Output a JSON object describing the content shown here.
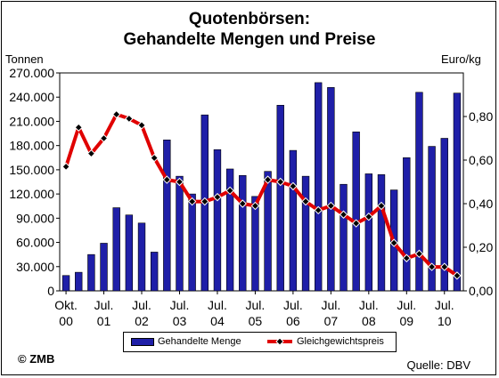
{
  "title_line1": "Quotenbörsen:",
  "title_line2": "Gehandelte Mengen und Preise",
  "left_unit": "Tonnen",
  "right_unit": "Euro/kg",
  "legend": {
    "bars": "Gehandelte Menge",
    "line": "Gleichgewichtspreis"
  },
  "copyright": "© ZMB",
  "source": "Quelle: DBV",
  "colors": {
    "bars": "#1f1fa8",
    "line": "#e00000",
    "marker": "#000000"
  },
  "chart_data": {
    "type": "bar",
    "left_axis": {
      "label": "Tonnen",
      "ylim": [
        0,
        270000
      ],
      "ticks": [
        "0",
        "30.000",
        "60.000",
        "90.000",
        "120.000",
        "150.000",
        "180.000",
        "210.000",
        "240.000",
        "270.000"
      ]
    },
    "right_axis": {
      "label": "Euro/kg",
      "ylim": [
        0,
        1.0
      ],
      "ticks": [
        "0,00",
        "0,20",
        "0,40",
        "0,60",
        "0,80"
      ]
    },
    "x_tick_labels": [
      [
        "Okt.",
        "00"
      ],
      [
        "Jul.",
        "01"
      ],
      [
        "Jul.",
        "02"
      ],
      [
        "Jul.",
        "03"
      ],
      [
        "Jul.",
        "04"
      ],
      [
        "Jul.",
        "05"
      ],
      [
        "Jul.",
        "06"
      ],
      [
        "Jul.",
        "07"
      ],
      [
        "Jul.",
        "08"
      ],
      [
        "Jul.",
        "09"
      ],
      [
        "Jul.",
        "10"
      ]
    ],
    "x_tick_indices": [
      0,
      3,
      6,
      9,
      12,
      15,
      18,
      21,
      24,
      27,
      30
    ],
    "series": [
      {
        "name": "Gehandelte Menge",
        "type": "bar",
        "axis": "left",
        "values": [
          19000,
          23000,
          45000,
          59000,
          103000,
          94000,
          84000,
          48000,
          187000,
          142000,
          120000,
          218000,
          175000,
          151000,
          143000,
          117000,
          148000,
          230000,
          174000,
          142000,
          258000,
          252000,
          132000,
          197000,
          145000,
          144000,
          125000,
          165000,
          246000,
          179000,
          189000,
          245000
        ]
      },
      {
        "name": "Gleichgewichtspreis",
        "type": "line",
        "axis": "right",
        "values": [
          0.57,
          0.75,
          0.63,
          0.7,
          0.81,
          0.79,
          0.76,
          0.61,
          0.51,
          0.5,
          0.41,
          0.41,
          0.43,
          0.46,
          0.4,
          0.39,
          0.51,
          0.5,
          0.48,
          0.41,
          0.37,
          0.39,
          0.35,
          0.31,
          0.34,
          0.39,
          0.22,
          0.15,
          0.17,
          0.11,
          0.11,
          0.07
        ]
      }
    ]
  }
}
